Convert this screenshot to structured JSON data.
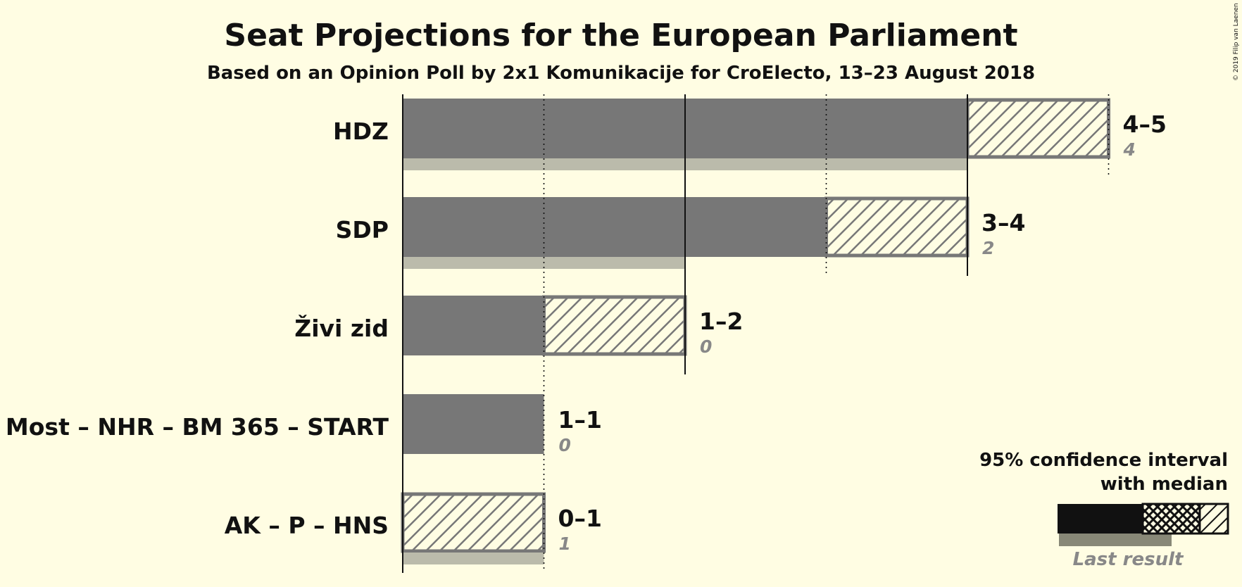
{
  "chart_data": {
    "type": "bar",
    "title": "Seat Projections for the European Parliament",
    "subtitle": "Based on an Opinion Poll by 2x1 Komunikacije for CroElecto, 13–23 August 2018",
    "copyright": "© 2019 Filip van Laenen",
    "xlim": [
      0,
      5
    ],
    "categories": [
      "HDZ",
      "SDP",
      "Živi zid",
      "Most – NHR – BM 365 – START",
      "AK – P – HNS"
    ],
    "series": [
      {
        "name": "95% confidence interval",
        "lower": [
          4,
          3,
          1,
          1,
          0
        ],
        "upper": [
          5,
          4,
          2,
          1,
          1
        ]
      },
      {
        "name": "with median",
        "values": [
          4,
          3,
          1,
          1,
          0
        ]
      },
      {
        "name": "Last result",
        "values": [
          4,
          2,
          0,
          0,
          1
        ]
      }
    ],
    "range_labels": [
      "4–5",
      "3–4",
      "1–2",
      "1–1",
      "0–1"
    ],
    "last_labels": [
      "4",
      "2",
      "0",
      "0",
      "1"
    ],
    "legend": {
      "title_line1": "95% confidence interval",
      "title_line2": "with median",
      "last_result": "Last result",
      "position": "bottom-right"
    },
    "colors": {
      "background": "#fffde3",
      "bar": "#777777",
      "last_result": "#bbbbab",
      "legend_bar": "#111111",
      "legend_last": "#888877"
    }
  }
}
